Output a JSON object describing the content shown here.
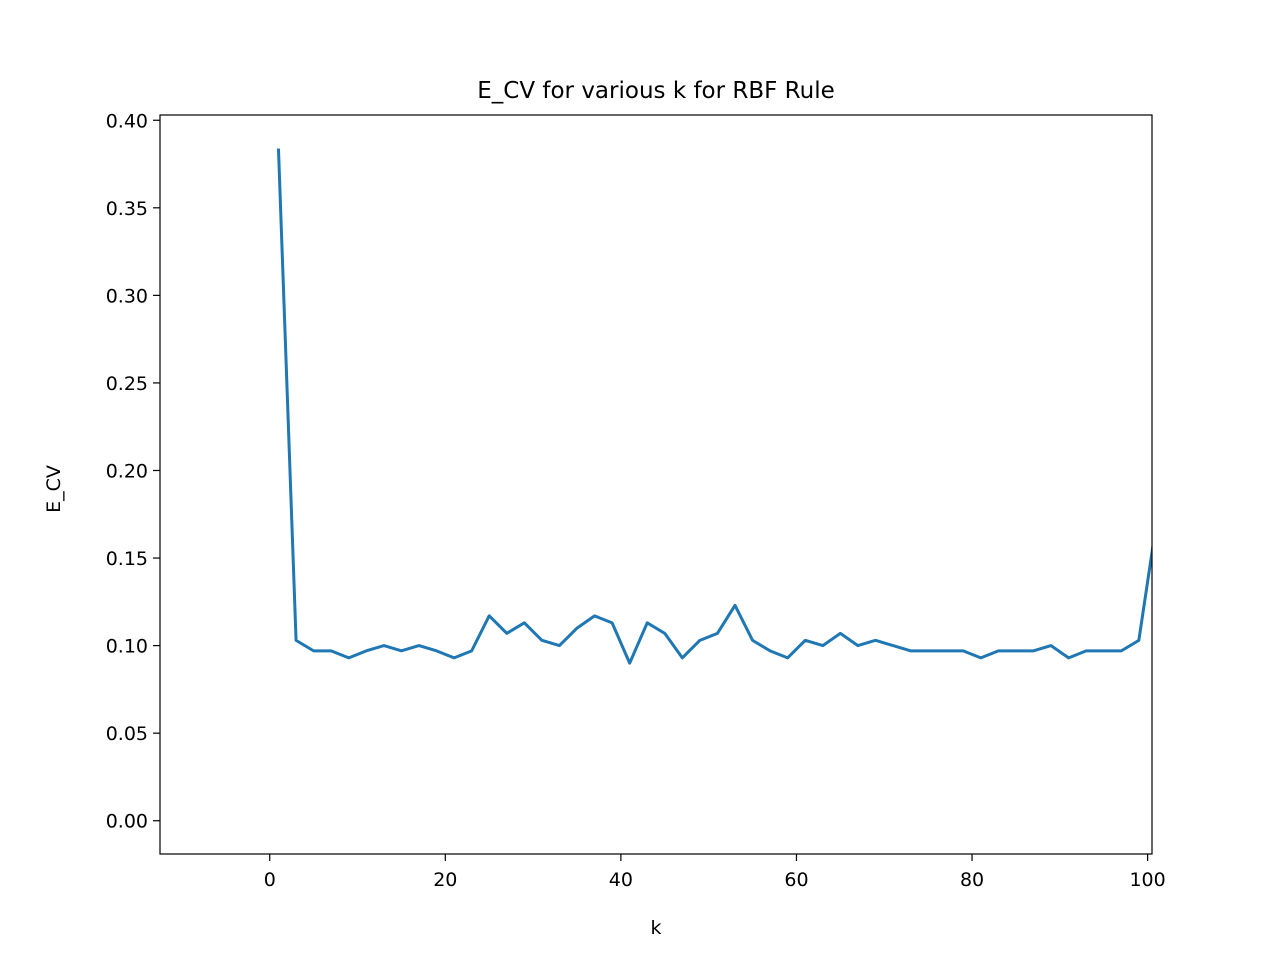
{
  "chart_data": {
    "type": "line",
    "title": "E_CV for various k for RBF Rule",
    "xlabel": "k",
    "ylabel": "E_CV",
    "xlim": [
      -12.5,
      100.5
    ],
    "ylim": [
      -0.019,
      0.403
    ],
    "xticks": [
      0,
      20,
      40,
      60,
      80,
      100
    ],
    "xtick_labels": [
      "0",
      "20",
      "40",
      "60",
      "80",
      "100"
    ],
    "yticks": [
      0.0,
      0.05,
      0.1,
      0.15,
      0.2,
      0.25,
      0.3,
      0.35,
      0.4
    ],
    "ytick_labels": [
      "0.00",
      "0.05",
      "0.10",
      "0.15",
      "0.20",
      "0.25",
      "0.30",
      "0.35",
      "0.40"
    ],
    "grid": false,
    "legend": "none",
    "series": [
      {
        "color": "#1f77b4",
        "x": [
          1,
          3,
          5,
          7,
          9,
          11,
          13,
          15,
          17,
          19,
          21,
          23,
          25,
          27,
          29,
          31,
          33,
          35,
          37,
          39,
          41,
          43,
          45,
          47,
          49,
          51,
          53,
          55,
          57,
          59,
          61,
          63,
          65,
          67,
          69,
          71,
          73,
          75,
          77,
          79,
          81,
          83,
          85,
          87,
          89,
          91,
          93,
          95,
          97,
          99,
          101
        ],
        "y": [
          0.383,
          0.103,
          0.097,
          0.097,
          0.093,
          0.097,
          0.1,
          0.097,
          0.1,
          0.097,
          0.093,
          0.097,
          0.117,
          0.107,
          0.113,
          0.103,
          0.1,
          0.11,
          0.117,
          0.113,
          0.09,
          0.113,
          0.107,
          0.093,
          0.103,
          0.107,
          0.123,
          0.103,
          0.097,
          0.093,
          0.103,
          0.1,
          0.107,
          0.1,
          0.103,
          0.1,
          0.097,
          0.097,
          0.097,
          0.097,
          0.093,
          0.097,
          0.097,
          0.097,
          0.1,
          0.093,
          0.097,
          0.097,
          0.097,
          0.103,
          0.17
        ]
      }
    ]
  }
}
